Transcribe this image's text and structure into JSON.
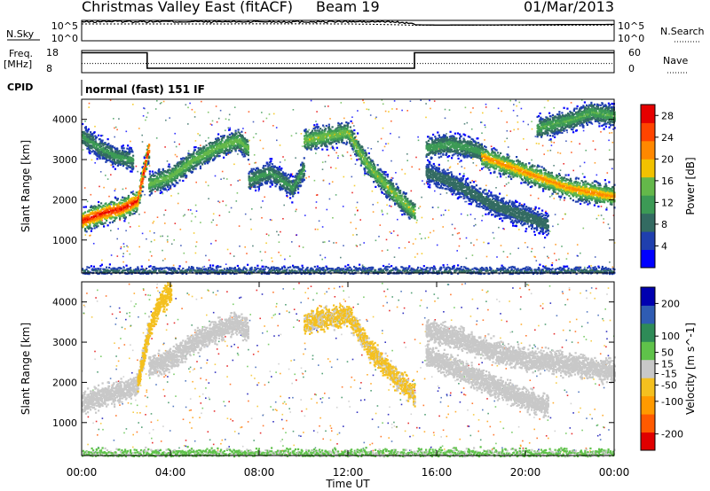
{
  "header": {
    "title": "Christmas Valley East (fitACF)",
    "beam": "Beam 19",
    "date": "01/Mar/2013"
  },
  "noise_panel": {
    "left_label": "N.Sky",
    "left_ticks": [
      "10^5",
      "10^0"
    ],
    "right_ticks": [
      "10^5",
      "10^0"
    ],
    "right_label": "N.Search"
  },
  "freq_panel": {
    "left_label_line1": "Freq.",
    "left_label_line2": "[MHz]",
    "left_ticks": [
      "18",
      "8"
    ],
    "right_ticks": [
      "60",
      "0"
    ],
    "right_label": "Nave"
  },
  "cpid": {
    "label": "CPID",
    "value": "normal (fast) 151 IF"
  },
  "chart_data": [
    {
      "type": "line",
      "panel": "noise",
      "series": [
        {
          "name": "N.Sky",
          "x_hours": [
            0,
            0.5,
            1,
            3,
            6,
            9,
            12,
            14,
            15,
            16,
            18,
            20,
            22,
            24
          ],
          "values": [
            50000,
            60000,
            70000,
            65000,
            55000,
            60000,
            58000,
            55000,
            12000,
            10000,
            11000,
            12000,
            14000,
            15000
          ]
        },
        {
          "name": "N.Search",
          "x_hours": [
            0,
            3,
            6,
            9,
            12,
            15,
            18,
            21,
            24
          ],
          "values": [
            20000,
            20000,
            20000,
            21000,
            20000,
            9000,
            9000,
            9000,
            10000
          ]
        }
      ],
      "xlim": [
        0,
        24
      ],
      "log_y": true
    },
    {
      "type": "line",
      "panel": "frequency",
      "series": [
        {
          "name": "Freq.",
          "x_hours": [
            0,
            2.95,
            2.95,
            15.0,
            15.0,
            24
          ],
          "values": [
            17,
            17,
            10,
            10,
            17,
            17
          ]
        },
        {
          "name": "Nave",
          "x_hours": [
            0,
            24
          ],
          "values": [
            25,
            25
          ]
        }
      ],
      "ylim_left": [
        8,
        18
      ],
      "ylim_right": [
        0,
        60
      ]
    },
    {
      "type": "heatmap",
      "panel": "power",
      "ylabel": "Slant Range [km]",
      "y_ticks": [
        1000,
        2000,
        3000,
        4000
      ],
      "ylim": [
        180,
        4500
      ],
      "xlim": [
        0,
        24
      ],
      "colorbar": {
        "label": "Power [dB]",
        "ticks": [
          4,
          8,
          12,
          16,
          20,
          24,
          28
        ],
        "range": [
          0,
          30
        ]
      },
      "tracks": [
        {
          "x_hours": [
            0,
            1,
            1.8,
            2.5,
            3.0
          ],
          "range_km": [
            1500,
            1700,
            1800,
            2000,
            3300
          ],
          "level_db": 26
        },
        {
          "x_hours": [
            0,
            0.8,
            1.5,
            2.3
          ],
          "range_km": [
            3600,
            3300,
            3100,
            3000
          ],
          "level_db": 10
        },
        {
          "x_hours": [
            3.0,
            4.0,
            5.0,
            6.0,
            7.0,
            7.5
          ],
          "range_km": [
            2400,
            2600,
            3000,
            3300,
            3500,
            3300
          ],
          "level_db": 14
        },
        {
          "x_hours": [
            7.5,
            8.5,
            9.5,
            10.0
          ],
          "range_km": [
            2500,
            2700,
            2300,
            2800
          ],
          "level_db": 10
        },
        {
          "x_hours": [
            10.0,
            11.0,
            12.0,
            12.5,
            13.0,
            14.0,
            15.0
          ],
          "range_km": [
            3500,
            3600,
            3700,
            3200,
            2800,
            2200,
            1700
          ],
          "level_db": 15
        },
        {
          "x_hours": [
            15.5,
            16.5,
            17.5,
            18.0
          ],
          "range_km": [
            3300,
            3400,
            3300,
            3200
          ],
          "level_db": 11
        },
        {
          "x_hours": [
            15.5,
            16.5,
            17.5,
            18.5,
            19.5,
            20.5,
            21.0
          ],
          "range_km": [
            2700,
            2500,
            2200,
            1900,
            1700,
            1500,
            1400
          ],
          "level_db": 8
        },
        {
          "x_hours": [
            18.0,
            19.0,
            20.0,
            21.0,
            22.0,
            23.0,
            24.0
          ],
          "range_km": [
            3100,
            2900,
            2700,
            2500,
            2300,
            2200,
            2100
          ],
          "level_db": 20
        },
        {
          "x_hours": [
            20.5,
            22.0,
            23.0,
            24.0
          ],
          "range_km": [
            3800,
            4000,
            4200,
            4100
          ],
          "level_db": 12
        },
        {
          "x_hours": [
            0,
            6,
            12,
            18,
            24
          ],
          "range_km": [
            250,
            250,
            250,
            250,
            250
          ],
          "level_db": 6
        }
      ]
    },
    {
      "type": "heatmap",
      "panel": "velocity",
      "ylabel": "Slant Range [km]",
      "y_ticks": [
        1000,
        2000,
        3000,
        4000
      ],
      "ylim": [
        180,
        4500
      ],
      "xlim": [
        0,
        24
      ],
      "xlabel": "Time UT",
      "x_tick_labels": [
        "00:00",
        "04:00",
        "08:00",
        "12:00",
        "16:00",
        "20:00",
        "00:00"
      ],
      "colorbar": {
        "label": "Velocity [m s^-1]",
        "ticks": [
          200,
          100,
          50,
          15,
          -15,
          -50,
          -100,
          -200
        ],
        "range": [
          -250,
          250
        ]
      },
      "tracks": [
        {
          "x_hours": [
            0,
            1,
            1.8,
            2.5,
            3.0
          ],
          "range_km": [
            1500,
            1700,
            1800,
            2000,
            3300
          ],
          "velocity": 0
        },
        {
          "x_hours": [
            2.5,
            3.0,
            3.5,
            4.0
          ],
          "range_km": [
            2000,
            3300,
            4000,
            4300
          ],
          "velocity": -60
        },
        {
          "x_hours": [
            3.0,
            4.0,
            5.0,
            6.0,
            7.0,
            7.5
          ],
          "range_km": [
            2400,
            2600,
            3000,
            3300,
            3500,
            3300
          ],
          "velocity": 0
        },
        {
          "x_hours": [
            10.0,
            11.0,
            12.0,
            13.0,
            14.0,
            15.0
          ],
          "range_km": [
            3500,
            3600,
            3700,
            2800,
            2200,
            1700
          ],
          "velocity": -40
        },
        {
          "x_hours": [
            15.5,
            17.0,
            18.5,
            20.0,
            21.5,
            24.0
          ],
          "range_km": [
            3300,
            3100,
            2800,
            2600,
            2500,
            2300
          ],
          "velocity": 0
        },
        {
          "x_hours": [
            15.5,
            17.5,
            19.5,
            21.0
          ],
          "range_km": [
            2700,
            2200,
            1700,
            1400
          ],
          "velocity": 0
        },
        {
          "x_hours": [
            0,
            6,
            12,
            18,
            24
          ],
          "range_km": [
            250,
            250,
            250,
            250,
            250
          ],
          "velocity": 40
        }
      ]
    }
  ],
  "colors": {
    "power_scale": [
      "#0000ff",
      "#1f3fae",
      "#336b62",
      "#3c9a55",
      "#64b84a",
      "#f2c200",
      "#ff8800",
      "#ff4400",
      "#e60000"
    ],
    "velocity_scale": [
      "#e00000",
      "#ff5a00",
      "#ff9a00",
      "#f4c01f",
      "#c8c8c8",
      "#5fc24a",
      "#2e8b57",
      "#2f5cb3",
      "#0000b0"
    ],
    "ground_scatter": "#c8c8c8"
  }
}
